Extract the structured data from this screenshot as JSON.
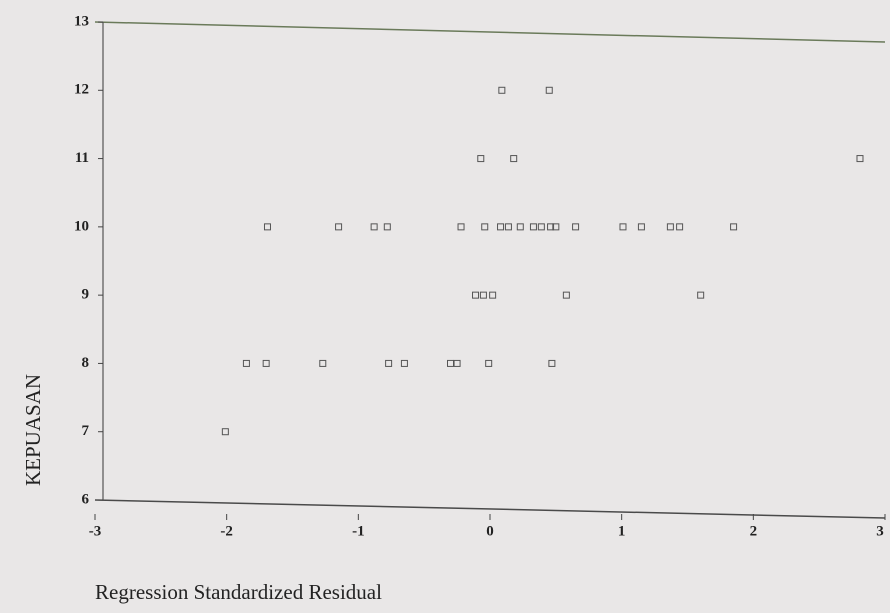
{
  "chart_data": {
    "type": "scatter",
    "xlabel": "Regression Standardized Residual",
    "ylabel": "KEPUASAN",
    "x": [
      0.09,
      0.45,
      -0.07,
      0.18,
      2.81,
      -1.69,
      -1.15,
      -0.88,
      -0.78,
      -0.22,
      -0.04,
      0.08,
      0.14,
      0.23,
      0.33,
      0.39,
      0.46,
      0.5,
      0.65,
      1.01,
      1.15,
      1.37,
      1.44,
      1.85,
      -0.11,
      -0.05,
      0.02,
      0.58,
      1.6,
      -1.85,
      -1.7,
      -1.27,
      -0.77,
      -0.65,
      -0.3,
      -0.25,
      -0.01,
      0.47,
      -2.01
    ],
    "values": [
      12,
      12,
      11,
      11,
      11,
      10,
      10,
      10,
      10,
      10,
      10,
      10,
      10,
      10,
      10,
      10,
      10,
      10,
      10,
      10,
      10,
      10,
      10,
      10,
      9,
      9,
      9,
      9,
      9,
      8,
      8,
      8,
      8,
      8,
      8,
      8,
      8,
      8,
      7
    ],
    "color": "#555555",
    "xlim": [
      -3,
      3
    ],
    "xticks": [
      -3,
      -2,
      -1,
      0,
      1,
      2,
      3
    ],
    "ylim": [
      6,
      13
    ],
    "yticks": [
      6,
      7,
      8,
      9,
      10,
      11,
      12,
      13
    ]
  }
}
